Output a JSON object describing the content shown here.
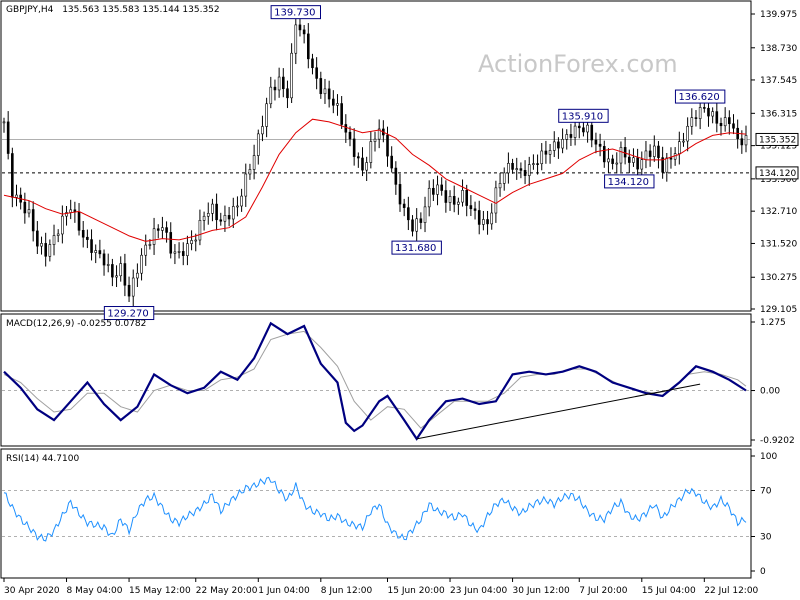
{
  "header": {
    "symbol": "GBPJPY,H4",
    "ohlc": "135.563 135.583 135.144 135.352"
  },
  "watermark": "ActionForex.com",
  "colors": {
    "candle": "#000000",
    "ma": "#e00000",
    "macd": "#000080",
    "signal": "#a0a0a0",
    "rsi": "#1e90ff",
    "grid": "#808080",
    "annotation": "#000080"
  },
  "chart_data": [
    {
      "type": "candlestick",
      "name": "price",
      "title": "GBPJPY,H4",
      "ylim": [
        129.105,
        139.975
      ],
      "y_ticks": [
        "139.975",
        "138.730",
        "137.545",
        "136.315",
        "135.125",
        "133.900",
        "132.710",
        "131.520",
        "130.275",
        "129.105"
      ],
      "current_price": "135.352",
      "horizontal_level": "134.120",
      "annotations": [
        {
          "text": "139.730",
          "value": 139.73,
          "x": 70
        },
        {
          "text": "129.270",
          "value": 129.27,
          "x": 30
        },
        {
          "text": "131.680",
          "value": 131.68,
          "x": 99
        },
        {
          "text": "135.910",
          "value": 135.91,
          "x": 139
        },
        {
          "text": "136.620",
          "value": 136.62,
          "x": 167
        },
        {
          "text": "134.120",
          "value": 134.12,
          "x": 150
        }
      ],
      "close_path": [
        [
          0,
          136.0
        ],
        [
          2,
          133.4
        ],
        [
          4,
          133.0
        ],
        [
          6,
          132.6
        ],
        [
          8,
          131.5
        ],
        [
          10,
          131.2
        ],
        [
          12,
          131.7
        ],
        [
          14,
          132.4
        ],
        [
          16,
          132.9
        ],
        [
          18,
          132.1
        ],
        [
          20,
          131.5
        ],
        [
          22,
          131.2
        ],
        [
          24,
          130.9
        ],
        [
          26,
          130.3
        ],
        [
          28,
          130.6
        ],
        [
          30,
          129.6
        ],
        [
          32,
          130.6
        ],
        [
          34,
          131.4
        ],
        [
          36,
          131.9
        ],
        [
          38,
          132.2
        ],
        [
          40,
          131.3
        ],
        [
          42,
          131.1
        ],
        [
          44,
          131.4
        ],
        [
          46,
          131.8
        ],
        [
          48,
          132.6
        ],
        [
          50,
          132.8
        ],
        [
          52,
          132.3
        ],
        [
          54,
          132.6
        ],
        [
          56,
          132.9
        ],
        [
          58,
          133.9
        ],
        [
          60,
          134.8
        ],
        [
          62,
          136.0
        ],
        [
          64,
          137.2
        ],
        [
          66,
          137.5
        ],
        [
          68,
          137.0
        ],
        [
          70,
          139.7
        ],
        [
          72,
          139.1
        ],
        [
          74,
          137.9
        ],
        [
          76,
          137.2
        ],
        [
          78,
          136.9
        ],
        [
          80,
          136.5
        ],
        [
          82,
          135.6
        ],
        [
          84,
          134.9
        ],
        [
          86,
          134.2
        ],
        [
          88,
          135.1
        ],
        [
          90,
          135.8
        ],
        [
          92,
          134.9
        ],
        [
          94,
          133.6
        ],
        [
          96,
          132.7
        ],
        [
          98,
          132.1
        ],
        [
          100,
          132.4
        ],
        [
          102,
          133.4
        ],
        [
          104,
          133.6
        ],
        [
          106,
          133.2
        ],
        [
          108,
          133.0
        ],
        [
          110,
          133.3
        ],
        [
          112,
          132.8
        ],
        [
          114,
          132.4
        ],
        [
          116,
          132.2
        ],
        [
          118,
          133.4
        ],
        [
          120,
          134.2
        ],
        [
          122,
          134.4
        ],
        [
          124,
          134.1
        ],
        [
          126,
          134.3
        ],
        [
          128,
          134.6
        ],
        [
          130,
          134.9
        ],
        [
          132,
          135.1
        ],
        [
          134,
          135.3
        ],
        [
          136,
          135.6
        ],
        [
          138,
          135.8
        ],
        [
          140,
          135.7
        ],
        [
          142,
          135.2
        ],
        [
          144,
          134.7
        ],
        [
          146,
          134.4
        ],
        [
          148,
          134.9
        ],
        [
          150,
          134.6
        ],
        [
          152,
          134.4
        ],
        [
          154,
          134.8
        ],
        [
          156,
          135.0
        ],
        [
          158,
          134.3
        ],
        [
          160,
          134.7
        ],
        [
          162,
          135.1
        ],
        [
          164,
          135.8
        ],
        [
          166,
          136.3
        ],
        [
          168,
          136.5
        ],
        [
          170,
          136.2
        ],
        [
          172,
          135.9
        ],
        [
          174,
          136.1
        ],
        [
          176,
          135.3
        ],
        [
          178,
          135.35
        ]
      ],
      "moving_average": [
        [
          0,
          133.3
        ],
        [
          6,
          133.1
        ],
        [
          10,
          132.8
        ],
        [
          14,
          132.6
        ],
        [
          18,
          132.7
        ],
        [
          22,
          132.4
        ],
        [
          26,
          132.1
        ],
        [
          30,
          131.8
        ],
        [
          34,
          131.6
        ],
        [
          38,
          131.7
        ],
        [
          42,
          131.65
        ],
        [
          46,
          131.8
        ],
        [
          50,
          132.0
        ],
        [
          54,
          132.1
        ],
        [
          58,
          132.5
        ],
        [
          62,
          133.6
        ],
        [
          66,
          134.8
        ],
        [
          70,
          135.6
        ],
        [
          74,
          136.1
        ],
        [
          78,
          136.0
        ],
        [
          82,
          135.8
        ],
        [
          86,
          135.6
        ],
        [
          90,
          135.7
        ],
        [
          94,
          135.4
        ],
        [
          98,
          134.8
        ],
        [
          102,
          134.4
        ],
        [
          106,
          133.9
        ],
        [
          110,
          133.6
        ],
        [
          114,
          133.3
        ],
        [
          118,
          133.0
        ],
        [
          122,
          133.4
        ],
        [
          126,
          133.7
        ],
        [
          130,
          133.9
        ],
        [
          134,
          134.1
        ],
        [
          138,
          134.6
        ],
        [
          142,
          134.9
        ],
        [
          146,
          135.0
        ],
        [
          150,
          134.8
        ],
        [
          154,
          134.6
        ],
        [
          158,
          134.6
        ],
        [
          162,
          134.8
        ],
        [
          166,
          135.2
        ],
        [
          170,
          135.5
        ],
        [
          174,
          135.6
        ],
        [
          178,
          135.55
        ]
      ]
    },
    {
      "type": "line",
      "name": "macd",
      "title": "MACD(12,26,9) -0.0255 0.0782",
      "ylim": [
        -0.9202,
        1.275
      ],
      "y_ticks": [
        "1.275",
        "0.00",
        "-0.9202"
      ],
      "current_value": "0.00",
      "macd": [
        [
          0,
          0.35
        ],
        [
          4,
          0.05
        ],
        [
          8,
          -0.35
        ],
        [
          12,
          -0.55
        ],
        [
          16,
          -0.2
        ],
        [
          20,
          0.15
        ],
        [
          24,
          -0.25
        ],
        [
          28,
          -0.55
        ],
        [
          32,
          -0.3
        ],
        [
          36,
          0.3
        ],
        [
          40,
          0.1
        ],
        [
          44,
          -0.05
        ],
        [
          48,
          0.05
        ],
        [
          52,
          0.35
        ],
        [
          56,
          0.2
        ],
        [
          60,
          0.6
        ],
        [
          64,
          1.25
        ],
        [
          68,
          1.05
        ],
        [
          72,
          1.2
        ],
        [
          76,
          0.5
        ],
        [
          80,
          0.15
        ],
        [
          82,
          -0.6
        ],
        [
          84,
          -0.75
        ],
        [
          86,
          -0.65
        ],
        [
          90,
          -0.2
        ],
        [
          92,
          -0.1
        ],
        [
          96,
          -0.55
        ],
        [
          99,
          -0.9
        ],
        [
          102,
          -0.55
        ],
        [
          106,
          -0.2
        ],
        [
          110,
          -0.15
        ],
        [
          114,
          -0.25
        ],
        [
          118,
          -0.2
        ],
        [
          122,
          0.3
        ],
        [
          126,
          0.35
        ],
        [
          130,
          0.3
        ],
        [
          134,
          0.35
        ],
        [
          138,
          0.45
        ],
        [
          142,
          0.35
        ],
        [
          146,
          0.15
        ],
        [
          150,
          0.05
        ],
        [
          154,
          -0.05
        ],
        [
          158,
          -0.1
        ],
        [
          162,
          0.15
        ],
        [
          166,
          0.45
        ],
        [
          170,
          0.35
        ],
        [
          174,
          0.2
        ],
        [
          178,
          0.0
        ]
      ],
      "signal": [
        [
          0,
          0.3
        ],
        [
          4,
          0.15
        ],
        [
          8,
          -0.15
        ],
        [
          12,
          -0.4
        ],
        [
          16,
          -0.35
        ],
        [
          20,
          -0.05
        ],
        [
          24,
          -0.05
        ],
        [
          28,
          -0.3
        ],
        [
          32,
          -0.4
        ],
        [
          36,
          0.0
        ],
        [
          40,
          0.1
        ],
        [
          44,
          0.0
        ],
        [
          48,
          0.0
        ],
        [
          52,
          0.2
        ],
        [
          56,
          0.25
        ],
        [
          60,
          0.4
        ],
        [
          64,
          0.95
        ],
        [
          68,
          1.05
        ],
        [
          72,
          1.1
        ],
        [
          76,
          0.8
        ],
        [
          80,
          0.45
        ],
        [
          84,
          -0.2
        ],
        [
          88,
          -0.55
        ],
        [
          92,
          -0.3
        ],
        [
          96,
          -0.35
        ],
        [
          100,
          -0.7
        ],
        [
          104,
          -0.45
        ],
        [
          108,
          -0.2
        ],
        [
          112,
          -0.2
        ],
        [
          116,
          -0.2
        ],
        [
          120,
          -0.05
        ],
        [
          124,
          0.25
        ],
        [
          128,
          0.3
        ],
        [
          132,
          0.3
        ],
        [
          136,
          0.4
        ],
        [
          140,
          0.4
        ],
        [
          144,
          0.25
        ],
        [
          148,
          0.1
        ],
        [
          152,
          0.0
        ],
        [
          156,
          -0.05
        ],
        [
          160,
          0.0
        ],
        [
          164,
          0.3
        ],
        [
          168,
          0.35
        ],
        [
          172,
          0.3
        ],
        [
          176,
          0.2
        ],
        [
          178,
          0.08
        ]
      ],
      "trendline": [
        [
          99,
          -0.9
        ],
        [
          167,
          0.12
        ]
      ]
    },
    {
      "type": "line",
      "name": "rsi",
      "title": "RSI(14) 44.7100",
      "ylim": [
        0,
        100
      ],
      "y_ticks": [
        "100",
        "70",
        "30",
        "0"
      ],
      "levels": [
        70,
        30
      ],
      "values": [
        [
          0,
          68
        ],
        [
          2,
          55
        ],
        [
          4,
          45
        ],
        [
          6,
          38
        ],
        [
          8,
          30
        ],
        [
          10,
          28
        ],
        [
          12,
          35
        ],
        [
          14,
          48
        ],
        [
          16,
          60
        ],
        [
          18,
          50
        ],
        [
          20,
          42
        ],
        [
          22,
          40
        ],
        [
          24,
          38
        ],
        [
          26,
          30
        ],
        [
          28,
          45
        ],
        [
          30,
          35
        ],
        [
          32,
          52
        ],
        [
          34,
          62
        ],
        [
          36,
          65
        ],
        [
          38,
          55
        ],
        [
          40,
          45
        ],
        [
          42,
          42
        ],
        [
          44,
          48
        ],
        [
          46,
          52
        ],
        [
          48,
          58
        ],
        [
          50,
          66
        ],
        [
          52,
          52
        ],
        [
          54,
          60
        ],
        [
          56,
          66
        ],
        [
          58,
          72
        ],
        [
          60,
          74
        ],
        [
          62,
          78
        ],
        [
          64,
          80
        ],
        [
          66,
          70
        ],
        [
          68,
          62
        ],
        [
          70,
          74
        ],
        [
          72,
          58
        ],
        [
          74,
          52
        ],
        [
          76,
          50
        ],
        [
          78,
          45
        ],
        [
          80,
          48
        ],
        [
          82,
          42
        ],
        [
          84,
          40
        ],
        [
          86,
          38
        ],
        [
          88,
          52
        ],
        [
          90,
          58
        ],
        [
          92,
          40
        ],
        [
          94,
          32
        ],
        [
          96,
          28
        ],
        [
          98,
          36
        ],
        [
          100,
          45
        ],
        [
          102,
          58
        ],
        [
          104,
          52
        ],
        [
          106,
          50
        ],
        [
          108,
          46
        ],
        [
          110,
          50
        ],
        [
          112,
          40
        ],
        [
          114,
          35
        ],
        [
          116,
          48
        ],
        [
          118,
          58
        ],
        [
          120,
          62
        ],
        [
          122,
          55
        ],
        [
          124,
          50
        ],
        [
          126,
          56
        ],
        [
          128,
          60
        ],
        [
          130,
          62
        ],
        [
          132,
          58
        ],
        [
          134,
          64
        ],
        [
          136,
          66
        ],
        [
          138,
          62
        ],
        [
          140,
          52
        ],
        [
          142,
          46
        ],
        [
          144,
          45
        ],
        [
          146,
          55
        ],
        [
          148,
          60
        ],
        [
          150,
          48
        ],
        [
          152,
          45
        ],
        [
          154,
          50
        ],
        [
          156,
          58
        ],
        [
          158,
          46
        ],
        [
          160,
          55
        ],
        [
          162,
          62
        ],
        [
          164,
          70
        ],
        [
          166,
          68
        ],
        [
          168,
          60
        ],
        [
          170,
          55
        ],
        [
          172,
          62
        ],
        [
          174,
          55
        ],
        [
          176,
          42
        ],
        [
          178,
          45
        ]
      ]
    }
  ],
  "x_axis": {
    "range": [
      0,
      178
    ],
    "labels": [
      {
        "text": "30 Apr 2020",
        "x": 0
      },
      {
        "text": "8 May 04:00",
        "x": 15
      },
      {
        "text": "15 May 12:00",
        "x": 30
      },
      {
        "text": "22 May 20:00",
        "x": 46
      },
      {
        "text": "1 Jun 04:00",
        "x": 61
      },
      {
        "text": "8 Jun 12:00",
        "x": 76
      },
      {
        "text": "15 Jun 20:00",
        "x": 92
      },
      {
        "text": "23 Jun 04:00",
        "x": 107
      },
      {
        "text": "30 Jun 12:00",
        "x": 122
      },
      {
        "text": "7 Jul 20:00",
        "x": 138
      },
      {
        "text": "15 Jul 04:00",
        "x": 153
      },
      {
        "text": "22 Jul 12:00",
        "x": 168
      }
    ]
  }
}
